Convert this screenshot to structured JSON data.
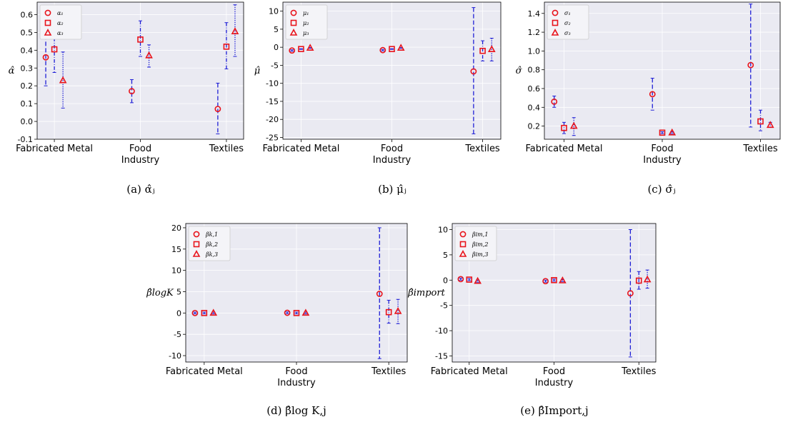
{
  "chart_data": [
    {
      "type": "scatter",
      "categories": [
        "Fabricated Metal",
        "Food",
        "Textiles"
      ],
      "xlabel": "Industry",
      "ylabel": "α̂",
      "ylim": [
        -0.1,
        0.67
      ],
      "yticks": [
        "-0.1",
        "0.0",
        "0.1",
        "0.2",
        "0.3",
        "0.4",
        "0.5",
        "0.6"
      ],
      "grid": true,
      "legend": "top-left",
      "caption": "(a)  α̂ⱼ",
      "series": [
        {
          "name": "α₁",
          "marker": "circle",
          "linestyle": "dashed",
          "values": [
            0.36,
            0.17,
            0.07
          ],
          "lower": [
            0.2,
            0.105,
            -0.07
          ],
          "upper": [
            0.52,
            0.235,
            0.215
          ]
        },
        {
          "name": "α₂",
          "marker": "square",
          "linestyle": "dashdot",
          "values": [
            0.405,
            0.46,
            0.42
          ],
          "lower": [
            0.275,
            0.365,
            0.295
          ],
          "upper": [
            0.51,
            0.565,
            0.555
          ]
        },
        {
          "name": "α₃",
          "marker": "triangle",
          "linestyle": "dotted",
          "values": [
            0.23,
            0.37,
            0.505
          ],
          "lower": [
            0.075,
            0.305,
            0.365
          ],
          "upper": [
            0.39,
            0.43,
            0.655
          ]
        }
      ]
    },
    {
      "type": "scatter",
      "categories": [
        "Fabricated Metal",
        "Food",
        "Textiles"
      ],
      "xlabel": "Industry",
      "ylabel": "μ̂",
      "ylim": [
        -25.5,
        12.5
      ],
      "yticks": [
        "-25",
        "-20",
        "-15",
        "-10",
        "-5",
        "0",
        "5",
        "10"
      ],
      "grid": true,
      "legend": "top-left",
      "caption": "(b)  μ̂ⱼ",
      "series": [
        {
          "name": "μ₁",
          "marker": "circle",
          "linestyle": "dashed",
          "values": [
            -0.9,
            -0.8,
            -6.7
          ],
          "lower": [
            -1.1,
            -1.0,
            -24.0
          ],
          "upper": [
            -0.7,
            -0.6,
            11.0
          ]
        },
        {
          "name": "μ₂",
          "marker": "square",
          "linestyle": "dashdot",
          "values": [
            -0.5,
            -0.5,
            -1.0
          ],
          "lower": [
            -0.6,
            -0.6,
            -3.8
          ],
          "upper": [
            -0.4,
            -0.4,
            1.8
          ]
        },
        {
          "name": "μ₃",
          "marker": "triangle",
          "linestyle": "dotted",
          "values": [
            -0.2,
            -0.2,
            -0.6
          ],
          "lower": [
            -0.3,
            -0.3,
            -3.8
          ],
          "upper": [
            -0.1,
            -0.1,
            2.5
          ]
        }
      ]
    },
    {
      "type": "scatter",
      "categories": [
        "Fabricated Metal",
        "Food",
        "Textiles"
      ],
      "xlabel": "Industry",
      "ylabel": "σ̂",
      "ylim": [
        0.06,
        1.52
      ],
      "yticks": [
        "0.2",
        "0.4",
        "0.6",
        "0.8",
        "1.0",
        "1.2",
        "1.4"
      ],
      "grid": true,
      "legend": "top-left",
      "caption": "(c)  σ̂ⱼ",
      "series": [
        {
          "name": "σ₁",
          "marker": "circle",
          "linestyle": "dashed",
          "values": [
            0.46,
            0.54,
            0.85
          ],
          "lower": [
            0.4,
            0.37,
            0.19
          ],
          "upper": [
            0.52,
            0.71,
            1.5
          ]
        },
        {
          "name": "σ₂",
          "marker": "square",
          "linestyle": "dashdot",
          "values": [
            0.18,
            0.13,
            0.25
          ],
          "lower": [
            0.12,
            0.12,
            0.15
          ],
          "upper": [
            0.24,
            0.14,
            0.37
          ]
        },
        {
          "name": "σ₃",
          "marker": "triangle",
          "linestyle": "dotted",
          "values": [
            0.2,
            0.13,
            0.21
          ],
          "lower": [
            0.1,
            0.12,
            0.19
          ],
          "upper": [
            0.29,
            0.14,
            0.24
          ]
        }
      ]
    },
    {
      "type": "scatter",
      "categories": [
        "Fabricated Metal",
        "Food",
        "Textiles"
      ],
      "xlabel": "Industry",
      "ylabel": "β̂logK",
      "ylim": [
        -11.5,
        21.0
      ],
      "yticks": [
        "-10",
        "-5",
        "0",
        "5",
        "10",
        "15",
        "20"
      ],
      "grid": true,
      "legend": "top-left",
      "caption": "(d)  β̂log K,j",
      "series": [
        {
          "name": "βk,1",
          "marker": "circle",
          "linestyle": "dashed",
          "values": [
            0.0,
            0.05,
            4.5
          ],
          "lower": [
            -0.2,
            -0.15,
            -10.7
          ],
          "upper": [
            0.2,
            0.25,
            20.0
          ]
        },
        {
          "name": "βk,2",
          "marker": "square",
          "linestyle": "dashdot",
          "values": [
            0.0,
            0.0,
            0.2
          ],
          "lower": [
            -0.2,
            -0.2,
            -2.4
          ],
          "upper": [
            0.2,
            0.2,
            3.0
          ]
        },
        {
          "name": "βk,3",
          "marker": "triangle",
          "linestyle": "dotted",
          "values": [
            0.0,
            0.0,
            0.4
          ],
          "lower": [
            -0.2,
            -0.2,
            -2.5
          ],
          "upper": [
            0.2,
            0.2,
            3.2
          ]
        }
      ]
    },
    {
      "type": "scatter",
      "categories": [
        "Fabricated Metal",
        "Food",
        "Textiles"
      ],
      "xlabel": "Industry",
      "ylabel": "β̂import",
      "ylim": [
        -16.2,
        11.2
      ],
      "yticks": [
        "-15",
        "-10",
        "-5",
        "0",
        "5",
        "10"
      ],
      "grid": true,
      "legend": "top-left",
      "caption": "(e)  β̂Import,j",
      "series": [
        {
          "name": "βim,1",
          "marker": "circle",
          "linestyle": "dashed",
          "values": [
            0.2,
            -0.2,
            -2.6
          ],
          "lower": [
            0.0,
            -0.4,
            -15.2
          ],
          "upper": [
            0.4,
            0.0,
            10.0
          ]
        },
        {
          "name": "βim,2",
          "marker": "square",
          "linestyle": "dashdot",
          "values": [
            0.1,
            0.0,
            -0.1
          ],
          "lower": [
            -0.1,
            -0.2,
            -1.8
          ],
          "upper": [
            0.3,
            0.2,
            1.7
          ]
        },
        {
          "name": "βim,3",
          "marker": "triangle",
          "linestyle": "dotted",
          "values": [
            -0.2,
            -0.1,
            0.1
          ],
          "lower": [
            -0.4,
            -0.3,
            -1.6
          ],
          "upper": [
            0.0,
            0.1,
            2.0
          ]
        }
      ]
    }
  ]
}
